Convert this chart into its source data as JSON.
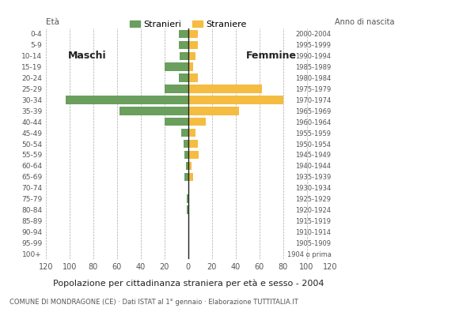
{
  "age_groups": [
    "100+",
    "95-99",
    "90-94",
    "85-89",
    "80-84",
    "75-79",
    "70-74",
    "65-69",
    "60-64",
    "55-59",
    "50-54",
    "45-49",
    "40-44",
    "35-39",
    "30-34",
    "25-29",
    "20-24",
    "15-19",
    "10-14",
    "5-9",
    "0-4"
  ],
  "birth_years": [
    "1904 o prima",
    "1905-1909",
    "1910-1914",
    "1915-1919",
    "1920-1924",
    "1925-1929",
    "1930-1934",
    "1935-1939",
    "1940-1944",
    "1945-1949",
    "1950-1954",
    "1955-1959",
    "1960-1964",
    "1965-1969",
    "1970-1974",
    "1975-1979",
    "1980-1984",
    "1985-1989",
    "1990-1994",
    "1995-1999",
    "2000-2004"
  ],
  "males": [
    0,
    0,
    0,
    0,
    1,
    1,
    0,
    3,
    2,
    3,
    4,
    6,
    20,
    58,
    103,
    20,
    8,
    20,
    7,
    8,
    8
  ],
  "females": [
    0,
    0,
    0,
    0,
    1,
    1,
    0,
    4,
    3,
    9,
    8,
    6,
    15,
    43,
    80,
    62,
    8,
    4,
    6,
    8,
    8
  ],
  "male_color": "#6a9f5e",
  "female_color": "#f5bc42",
  "center_line_color": "#222222",
  "grid_color": "#aaaaaa",
  "background_color": "#ffffff",
  "title": "Popolazione per cittadinanza straniera per età e sesso - 2004",
  "subtitle": "COMUNE DI MONDRAGONE (CE) · Dati ISTAT al 1° gennaio · Elaborazione TUTTITALIA.IT",
  "legend_male": "Stranieri",
  "legend_female": "Straniere",
  "label_males": "Maschi",
  "label_females": "Femmine",
  "xlim": 120
}
